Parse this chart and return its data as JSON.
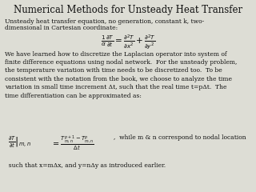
{
  "title": "Numerical Methods for Unsteady Heat Transfer",
  "title_fontsize": 8.5,
  "body_fontsize": 5.5,
  "eq1_fontsize": 7.5,
  "eq2_fontsize": 7.0,
  "bg_color": "#ddddd5",
  "text_color": "#111111",
  "line1": "Unsteady heat transfer equation, no generation, constant k, two-",
  "line2": "dimensional in Cartesian coordinate:",
  "eq1_latex": "$\\frac{1}{\\alpha} \\frac{\\partial T}{\\partial t} = \\frac{\\partial^2 T}{\\partial x^2} + \\frac{\\partial^2 T}{\\partial y^2}$",
  "para": "We have learned how to discretize the Laplacian operator into system of\nfinite difference equations using nodal network.  For the unsteady problem,\nthe temperature variation with time needs to be discretized too.  To be\nconsistent with the notation from the book, we choose to analyze the time\nvariation in small time increment Δt, such that the real time t=pΔt.  The\ntime differentiation can be approximated as:",
  "eq2_left": "$\\left.\\frac{\\partial T}{\\partial t}\\right|_{m,n}$",
  "eq2_right": "$= \\frac{T_{m,n}^{p+1} - T_{m,n}^{p}}{\\Delta t}$",
  "eq2_note": ",  while m & n correspond to nodal location",
  "line_last": "  such that x=mΔx, and y=nΔy as introduced earlier."
}
